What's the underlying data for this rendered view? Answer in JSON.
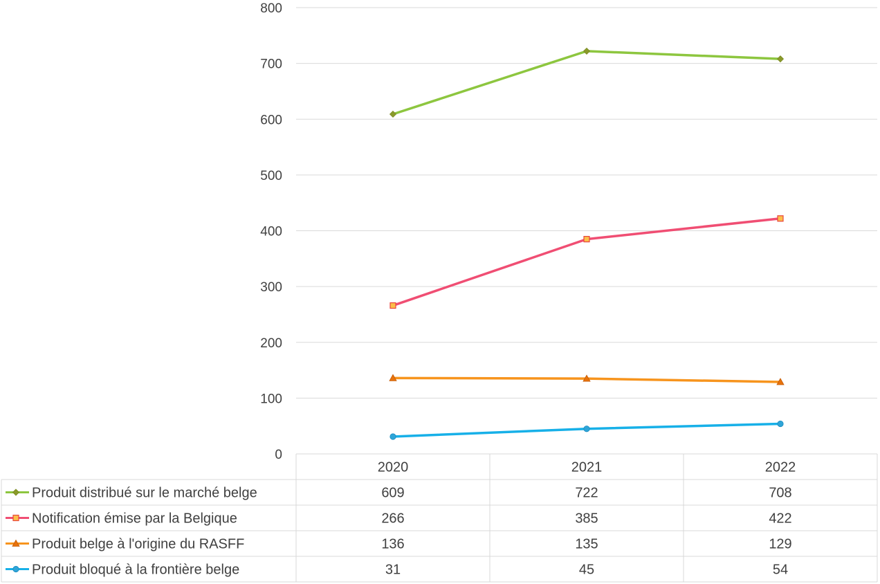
{
  "chart_data": {
    "type": "line",
    "title": "",
    "xlabel": "",
    "ylabel": "",
    "categories": [
      "2020",
      "2021",
      "2022"
    ],
    "ylim": [
      0,
      800
    ],
    "yticks": [
      0,
      100,
      200,
      300,
      400,
      500,
      600,
      700,
      800
    ],
    "grid": true,
    "legend": "data-table-bottom",
    "series": [
      {
        "name": "Produit distribué sur le marché belge",
        "values": [
          609,
          722,
          708
        ],
        "color": "#8dc63f",
        "marker": "diamond"
      },
      {
        "name": "Notification émise par la Belgique",
        "values": [
          266,
          385,
          422
        ],
        "color": "#f04e73",
        "marker": "square"
      },
      {
        "name": "Produit belge à l'origine du RASFF",
        "values": [
          136,
          135,
          129
        ],
        "color": "#f7941d",
        "marker": "triangle"
      },
      {
        "name": "Produit bloqué à la frontière belge",
        "values": [
          31,
          45,
          54
        ],
        "color": "#17b0e8",
        "marker": "circle"
      }
    ]
  }
}
